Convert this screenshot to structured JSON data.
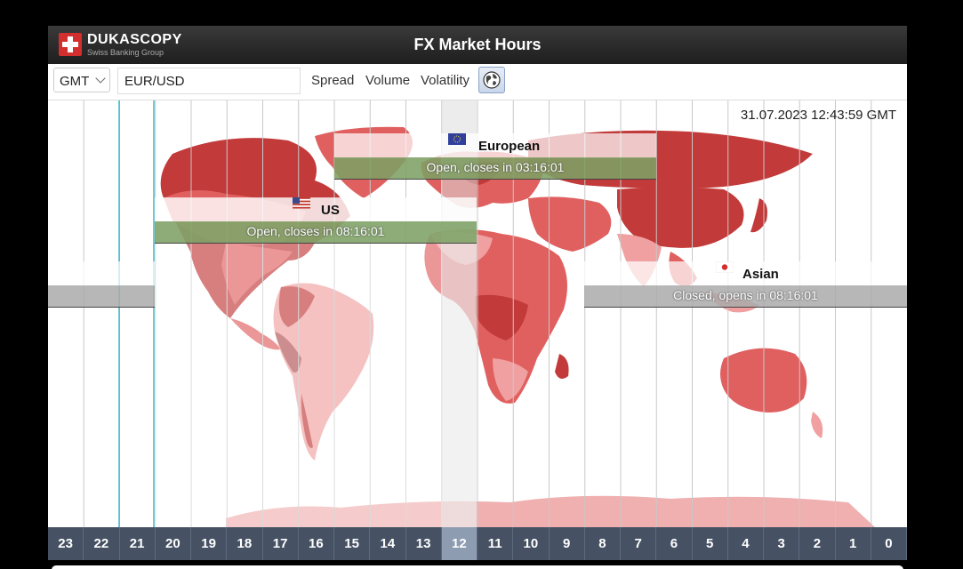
{
  "header": {
    "brand": "DUKASCOPY",
    "subtitle": "Swiss Banking Group",
    "title": "FX Market Hours"
  },
  "toolbar": {
    "timezone": "GMT",
    "pair_value": "EUR/USD",
    "spread_label": "Spread",
    "volume_label": "Volume",
    "volatility_label": "Volatility",
    "globe_icon": "globe-icon"
  },
  "map": {
    "datetime": "31.07.2023 12:43:59 GMT",
    "markets": {
      "european": {
        "name": "European",
        "status": "Open, closes in 03:16:01",
        "flag": "eu-flag-icon",
        "state": "open"
      },
      "us": {
        "name": "US",
        "status": "Open, closes in 08:16:01",
        "flag": "us-flag-icon",
        "state": "open"
      },
      "asian": {
        "name": "Asian",
        "status": "Closed, opens in 08:16:01",
        "flag": "japan-flag-icon",
        "state": "closed"
      }
    }
  },
  "hours": [
    "23",
    "22",
    "21",
    "20",
    "19",
    "18",
    "17",
    "16",
    "15",
    "14",
    "13",
    "12",
    "11",
    "10",
    "9",
    "8",
    "7",
    "6",
    "5",
    "4",
    "3",
    "2",
    "1",
    "0"
  ],
  "active_hour": "12",
  "colors": {
    "header_bg": "#2b2b2b",
    "open_bar": "#7da064",
    "closed_bar": "#aaaaaa",
    "hour_bar": "#465264",
    "active_hour": "#8e9cb2",
    "land_dark": "#c23a3a",
    "land_mid": "#e06060",
    "land_light": "#f0a0a0"
  }
}
